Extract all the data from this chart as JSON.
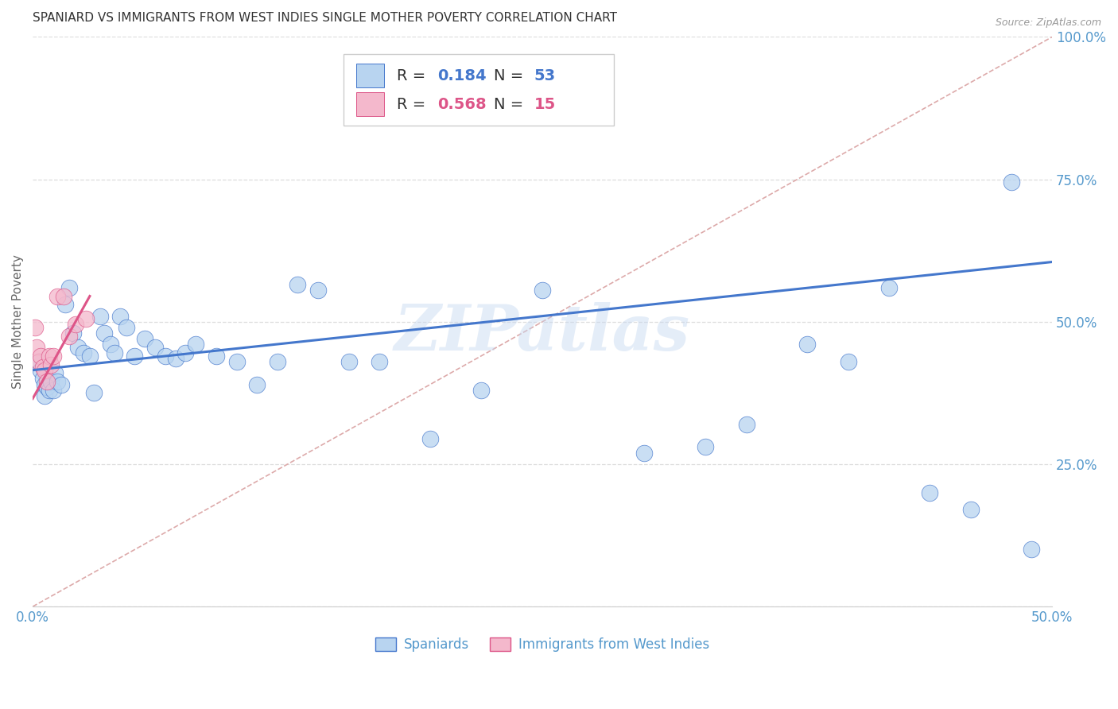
{
  "title": "SPANIARD VS IMMIGRANTS FROM WEST INDIES SINGLE MOTHER POVERTY CORRELATION CHART",
  "source": "Source: ZipAtlas.com",
  "ylabel": "Single Mother Poverty",
  "watermark": "ZIPatlas",
  "blue_color": "#b8d4f0",
  "pink_color": "#f4b8cc",
  "blue_line_color": "#4477cc",
  "pink_line_color": "#dd5588",
  "diag_line_color": "#ddaaaa",
  "grid_color": "#dddddd",
  "title_color": "#333333",
  "tick_color": "#5599cc",
  "axis_color": "#aaaaaa",
  "legend_r_color": "#333333",
  "legend_n_color": "#5599cc",
  "spaniards_x": [
    0.003,
    0.004,
    0.005,
    0.006,
    0.006,
    0.007,
    0.008,
    0.009,
    0.01,
    0.011,
    0.012,
    0.014,
    0.016,
    0.018,
    0.02,
    0.022,
    0.025,
    0.028,
    0.03,
    0.033,
    0.035,
    0.038,
    0.04,
    0.043,
    0.046,
    0.05,
    0.055,
    0.06,
    0.065,
    0.07,
    0.075,
    0.08,
    0.09,
    0.1,
    0.11,
    0.12,
    0.13,
    0.14,
    0.155,
    0.17,
    0.195,
    0.22,
    0.25,
    0.3,
    0.33,
    0.35,
    0.38,
    0.4,
    0.42,
    0.44,
    0.46,
    0.48,
    0.49
  ],
  "spaniards_y": [
    0.43,
    0.415,
    0.4,
    0.39,
    0.37,
    0.385,
    0.38,
    0.395,
    0.38,
    0.41,
    0.395,
    0.39,
    0.53,
    0.56,
    0.48,
    0.455,
    0.445,
    0.44,
    0.375,
    0.51,
    0.48,
    0.46,
    0.445,
    0.51,
    0.49,
    0.44,
    0.47,
    0.455,
    0.44,
    0.435,
    0.445,
    0.46,
    0.44,
    0.43,
    0.39,
    0.43,
    0.565,
    0.555,
    0.43,
    0.43,
    0.295,
    0.38,
    0.555,
    0.27,
    0.28,
    0.32,
    0.46,
    0.43,
    0.56,
    0.2,
    0.17,
    0.745,
    0.1
  ],
  "west_indies_x": [
    0.001,
    0.002,
    0.003,
    0.004,
    0.005,
    0.006,
    0.007,
    0.008,
    0.009,
    0.01,
    0.012,
    0.015,
    0.018,
    0.021,
    0.026
  ],
  "west_indies_y": [
    0.49,
    0.455,
    0.43,
    0.44,
    0.42,
    0.415,
    0.395,
    0.44,
    0.425,
    0.44,
    0.545,
    0.545,
    0.475,
    0.495,
    0.505
  ],
  "blue_line_x0": 0.0,
  "blue_line_x1": 0.5,
  "blue_line_y0": 0.415,
  "blue_line_y1": 0.605,
  "pink_line_x0": 0.0,
  "pink_line_x1": 0.028,
  "pink_line_y0": 0.365,
  "pink_line_y1": 0.545,
  "diag_line_x0": 0.0,
  "diag_line_x1": 0.5,
  "diag_line_y0": 0.0,
  "diag_line_y1": 1.0,
  "xlim": [
    0.0,
    0.5
  ],
  "ylim": [
    0.0,
    1.0
  ],
  "yticks": [
    0.0,
    0.25,
    0.5,
    0.75,
    1.0
  ],
  "ytick_labels": [
    "",
    "25.0%",
    "50.0%",
    "75.0%",
    "100.0%"
  ],
  "xticks": [
    0.0,
    0.1,
    0.2,
    0.3,
    0.4,
    0.5
  ],
  "xtick_labels": [
    "0.0%",
    "",
    "",
    "",
    "",
    "50.0%"
  ]
}
